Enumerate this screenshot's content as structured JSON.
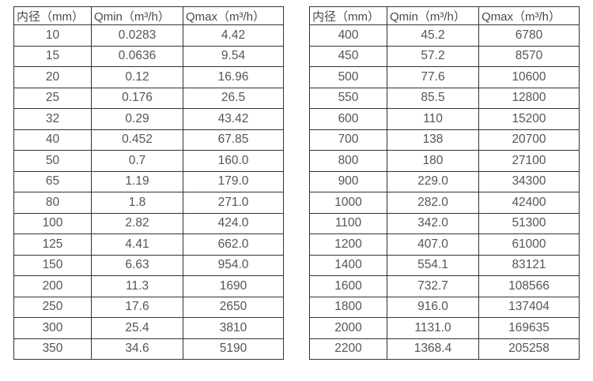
{
  "page": {
    "background_color": "#ffffff",
    "border_color": "#333333",
    "header_text_color": "#4a4a4a",
    "cell_text_color": "#555555"
  },
  "tables": [
    {
      "name": "flow-spec-table-small-diameters",
      "headers": [
        "内径（mm）",
        "Qmin（m³/h）",
        "Qmax（m³/h）"
      ],
      "rows": [
        [
          "10",
          "0.0283",
          "4.42"
        ],
        [
          "15",
          "0.0636",
          "9.54"
        ],
        [
          "20",
          "0.12",
          "16.96"
        ],
        [
          "25",
          "0.176",
          "26.5"
        ],
        [
          "32",
          "0.29",
          "43.42"
        ],
        [
          "40",
          "0.452",
          "67.85"
        ],
        [
          "50",
          "0.7",
          "160.0"
        ],
        [
          "65",
          "1.19",
          "179.0"
        ],
        [
          "80",
          "1.8",
          "271.0"
        ],
        [
          "100",
          "2.82",
          "424.0"
        ],
        [
          "125",
          "4.41",
          "662.0"
        ],
        [
          "150",
          "6.63",
          "954.0"
        ],
        [
          "200",
          "11.3",
          "1690"
        ],
        [
          "250",
          "17.6",
          "2650"
        ],
        [
          "300",
          "25.4",
          "3810"
        ],
        [
          "350",
          "34.6",
          "5190"
        ]
      ]
    },
    {
      "name": "flow-spec-table-large-diameters",
      "headers": [
        "内径（mm）",
        "Qmin（m³/h）",
        "Qmax（m³/h）"
      ],
      "rows": [
        [
          "400",
          "45.2",
          "6780"
        ],
        [
          "450",
          "57.2",
          "8570"
        ],
        [
          "500",
          "77.6",
          "10600"
        ],
        [
          "550",
          "85.5",
          "12800"
        ],
        [
          "600",
          "110",
          "15200"
        ],
        [
          "700",
          "138",
          "20700"
        ],
        [
          "800",
          "180",
          "27100"
        ],
        [
          "900",
          "229.0",
          "34300"
        ],
        [
          "1000",
          "282.0",
          "42400"
        ],
        [
          "1100",
          "342.0",
          "51300"
        ],
        [
          "1200",
          "407.0",
          "61000"
        ],
        [
          "1400",
          "554.1",
          "83121"
        ],
        [
          "1600",
          "732.7",
          "108566"
        ],
        [
          "1800",
          "916.0",
          "137404"
        ],
        [
          "2000",
          "1131.0",
          "169635"
        ],
        [
          "2200",
          "1368.4",
          "205258"
        ]
      ]
    }
  ]
}
